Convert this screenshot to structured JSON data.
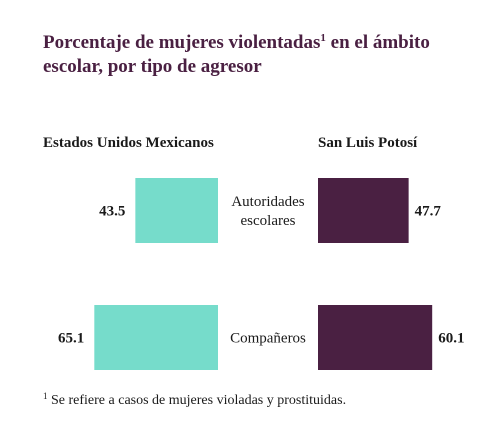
{
  "title": {
    "line1_prefix": "Porcentaje de mujeres violentadas",
    "footnote_mark": "1",
    "line1_suffix": " en el ámbito",
    "line2": "escolar, por tipo de agresor"
  },
  "footnote": {
    "mark": "1",
    "text": " Se refiere a casos de mujeres violadas y prostituidas."
  },
  "colors": {
    "left_series": "#76dccb",
    "right_series": "#4a2042",
    "title": "#4a2042"
  },
  "chart_data": {
    "type": "bar",
    "orientation": "horizontal",
    "layout": "butterfly",
    "categories": [
      [
        "Autoridades",
        "escolares"
      ],
      [
        "Compañeros"
      ]
    ],
    "series": [
      {
        "name": "Estados Unidos Mexicanos",
        "values": [
          43.5,
          65.1
        ]
      },
      {
        "name": "San Luis Potosí",
        "values": [
          47.7,
          60.1
        ]
      }
    ]
  }
}
